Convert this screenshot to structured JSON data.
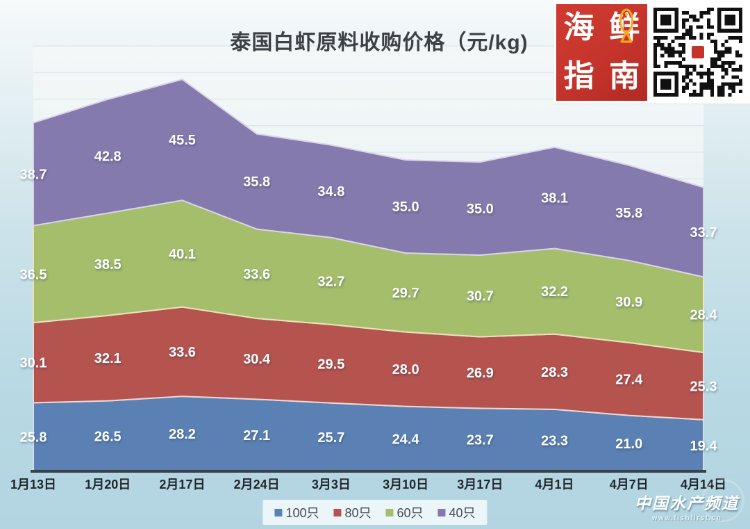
{
  "chart_data": {
    "type": "area",
    "stacked": true,
    "title": "泰国白虾原料收购价格（元/kg)",
    "categories": [
      "1月13日",
      "1月20日",
      "2月17日",
      "2月24日",
      "3月3日",
      "3月10日",
      "3月17日",
      "4月1日",
      "4月7日",
      "4月14日"
    ],
    "series": [
      {
        "name": "100只",
        "color": "#5b81b4",
        "edge": "#cfdded",
        "values": [
          25.8,
          26.5,
          28.2,
          27.1,
          25.7,
          24.4,
          23.7,
          23.3,
          21.0,
          19.4
        ]
      },
      {
        "name": "80只",
        "color": "#b5534f",
        "edge": "#ecd8d4",
        "values": [
          30.1,
          32.1,
          33.6,
          30.4,
          29.5,
          28.0,
          26.9,
          28.3,
          27.4,
          25.3
        ]
      },
      {
        "name": "60只",
        "color": "#a4be6c",
        "edge": "#ece3bd",
        "values": [
          36.5,
          38.5,
          40.1,
          33.6,
          32.7,
          29.7,
          30.7,
          32.2,
          30.9,
          28.4
        ]
      },
      {
        "name": "40只",
        "color": "#857aad",
        "edge": "#d9d3e8",
        "values": [
          38.7,
          42.8,
          45.5,
          35.8,
          34.8,
          35.0,
          35.0,
          38.1,
          35.8,
          33.7
        ]
      }
    ],
    "ylim": [
      0,
      160
    ],
    "grid_step": 10,
    "grid": "faint horizontal lines",
    "legend_position": "bottom-center",
    "label_format": "one-decimal white labels centered in each band",
    "axis_color": "#30363c",
    "plot_bg_top": "#f3f7f8",
    "plot_bg_bottom": "#e3edf1"
  },
  "branding": {
    "logo_chars": [
      "海",
      "鲜",
      "指",
      "南"
    ],
    "logo_bg": "#c5342c",
    "fish_icon_color": "#f6a820",
    "qr_modules": 25
  },
  "watermark": {
    "line1": "中国水产频道",
    "line2": "www.fishfirst.cn"
  }
}
